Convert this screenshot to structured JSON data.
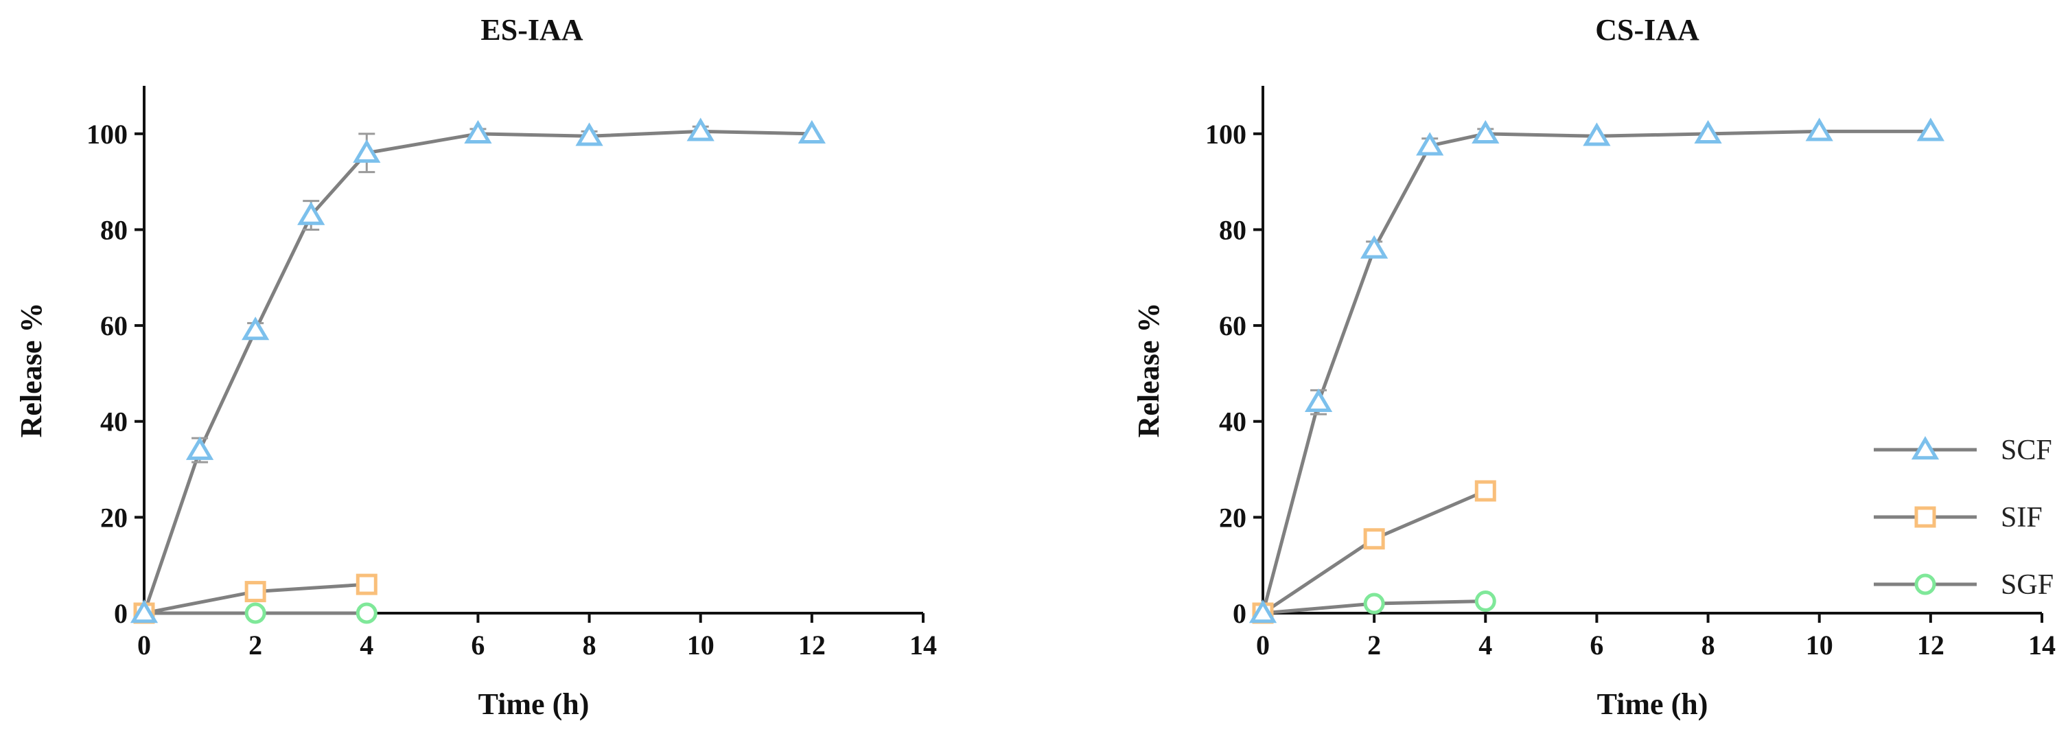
{
  "chart_data": [
    {
      "type": "line",
      "title": "ES-IAA",
      "xlabel": "Time (h)",
      "ylabel": "Release %",
      "xlim": [
        0,
        14
      ],
      "ylim": [
        0,
        110
      ],
      "xticks": [
        0,
        2,
        4,
        6,
        8,
        10,
        12,
        14
      ],
      "yticks": [
        0,
        20,
        40,
        60,
        80,
        100
      ],
      "grid": false,
      "legend": null,
      "series": [
        {
          "name": "SCF",
          "marker": "triangle",
          "color": "#7cc0ec",
          "x": [
            0,
            1,
            2,
            3,
            4,
            6,
            8,
            10,
            12
          ],
          "y": [
            0,
            34,
            59,
            83,
            96,
            100,
            99.5,
            100.5,
            100
          ],
          "error": [
            0,
            2.5,
            1.5,
            3,
            4,
            1,
            1,
            1,
            0.5
          ]
        },
        {
          "name": "SIF",
          "marker": "square",
          "color": "#f9bf7a",
          "x": [
            0,
            2,
            4
          ],
          "y": [
            0,
            4.5,
            6
          ],
          "error": [
            0,
            0.5,
            0.5
          ]
        },
        {
          "name": "SGF",
          "marker": "circle",
          "color": "#7fe899",
          "x": [
            0,
            2,
            4
          ],
          "y": [
            0,
            0,
            0
          ],
          "error": [
            0,
            0,
            0
          ]
        }
      ]
    },
    {
      "type": "line",
      "title": "CS-IAA",
      "xlabel": "Time (h)",
      "ylabel": "Release %",
      "xlim": [
        0,
        14
      ],
      "ylim": [
        0,
        110
      ],
      "xticks": [
        0,
        2,
        4,
        6,
        8,
        10,
        12,
        14
      ],
      "yticks": [
        0,
        20,
        40,
        60,
        80,
        100
      ],
      "grid": false,
      "legend": "bottom-right",
      "series": [
        {
          "name": "SCF",
          "marker": "triangle",
          "color": "#7cc0ec",
          "x": [
            0,
            1,
            2,
            3,
            4,
            6,
            8,
            10,
            12
          ],
          "y": [
            0,
            44,
            76,
            97.5,
            100,
            99.5,
            100,
            100.5,
            100.5
          ],
          "error": [
            0,
            2.5,
            1.5,
            1.5,
            1,
            0.5,
            0.5,
            0.5,
            0.5
          ]
        },
        {
          "name": "SIF",
          "marker": "square",
          "color": "#f9bf7a",
          "x": [
            0,
            2,
            4
          ],
          "y": [
            0,
            15.5,
            25.5
          ],
          "error": [
            0,
            0.5,
            0.5
          ]
        },
        {
          "name": "SGF",
          "marker": "circle",
          "color": "#7fe899",
          "x": [
            0,
            2,
            4
          ],
          "y": [
            0,
            2,
            2.5
          ],
          "error": [
            0,
            0.3,
            0.3
          ]
        }
      ]
    }
  ],
  "style": {
    "line_color": "#808080",
    "axis_color": "#111111",
    "error_color": "#9a9a9a"
  }
}
